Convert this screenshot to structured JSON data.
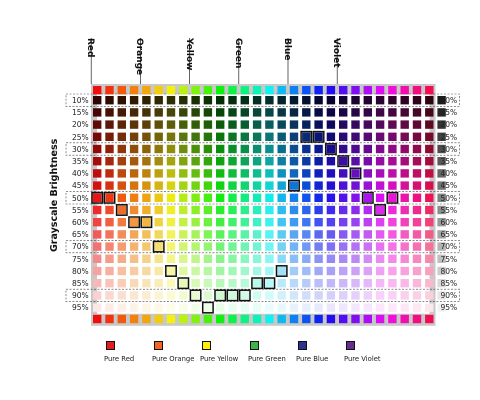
{
  "y_axis_title": "Grayscale Brightness",
  "hue_columns": [
    {
      "label": "Red",
      "col": 0
    },
    {
      "label": "Orange",
      "col": 4
    },
    {
      "label": "Yellow",
      "col": 8
    },
    {
      "label": "Green",
      "col": 12
    },
    {
      "label": "Blue",
      "col": 16
    },
    {
      "label": "Violet",
      "col": 20
    }
  ],
  "brightness_rows": [
    "10%",
    "15%",
    "20%",
    "25%",
    "30%",
    "35%",
    "40%",
    "45%",
    "50%",
    "55%",
    "60%",
    "65%",
    "70%",
    "75%",
    "80%",
    "85%",
    "90%",
    "95%"
  ],
  "dashed_rows": [
    0,
    4,
    8,
    12,
    16
  ],
  "column_hues": [
    0,
    10,
    20,
    30,
    40,
    50,
    60,
    75,
    90,
    105,
    120,
    135,
    150,
    165,
    180,
    195,
    210,
    222,
    234,
    246,
    258,
    270,
    282,
    294,
    306,
    318,
    330,
    342
  ],
  "colors": {
    "pure_red": "#e31b23",
    "pure_orange": "#f26522",
    "pure_yellow": "#fff200",
    "pure_green": "#3cb44a",
    "pure_blue": "#2e3192",
    "pure_violet": "#662d91",
    "frame_gray": "#c8c8c8",
    "outline": "#111111"
  },
  "highlighted_cells": [
    [
      0,
      8
    ],
    [
      1,
      8
    ],
    [
      2,
      9
    ],
    [
      3,
      10
    ],
    [
      4,
      10
    ],
    [
      5,
      12
    ],
    [
      6,
      14
    ],
    [
      7,
      15
    ],
    [
      8,
      16
    ],
    [
      9,
      17
    ],
    [
      10,
      16
    ],
    [
      11,
      16
    ],
    [
      12,
      16
    ],
    [
      13,
      15
    ],
    [
      14,
      15
    ],
    [
      15,
      14
    ],
    [
      16,
      7
    ],
    [
      17,
      3
    ],
    [
      18,
      3
    ],
    [
      19,
      4
    ],
    [
      20,
      5
    ],
    [
      21,
      6
    ],
    [
      22,
      8
    ],
    [
      23,
      9
    ],
    [
      24,
      8
    ]
  ],
  "legend": [
    {
      "label": "Pure Red",
      "color": "#e31b23"
    },
    {
      "label": "Pure Orange",
      "color": "#f26522"
    },
    {
      "label": "Pure Yellow",
      "color": "#fff200"
    },
    {
      "label": "Pure Green",
      "color": "#3cb44a"
    },
    {
      "label": "Pure Blue",
      "color": "#2e3192"
    },
    {
      "label": "Pure Violet",
      "color": "#662d91"
    }
  ]
}
